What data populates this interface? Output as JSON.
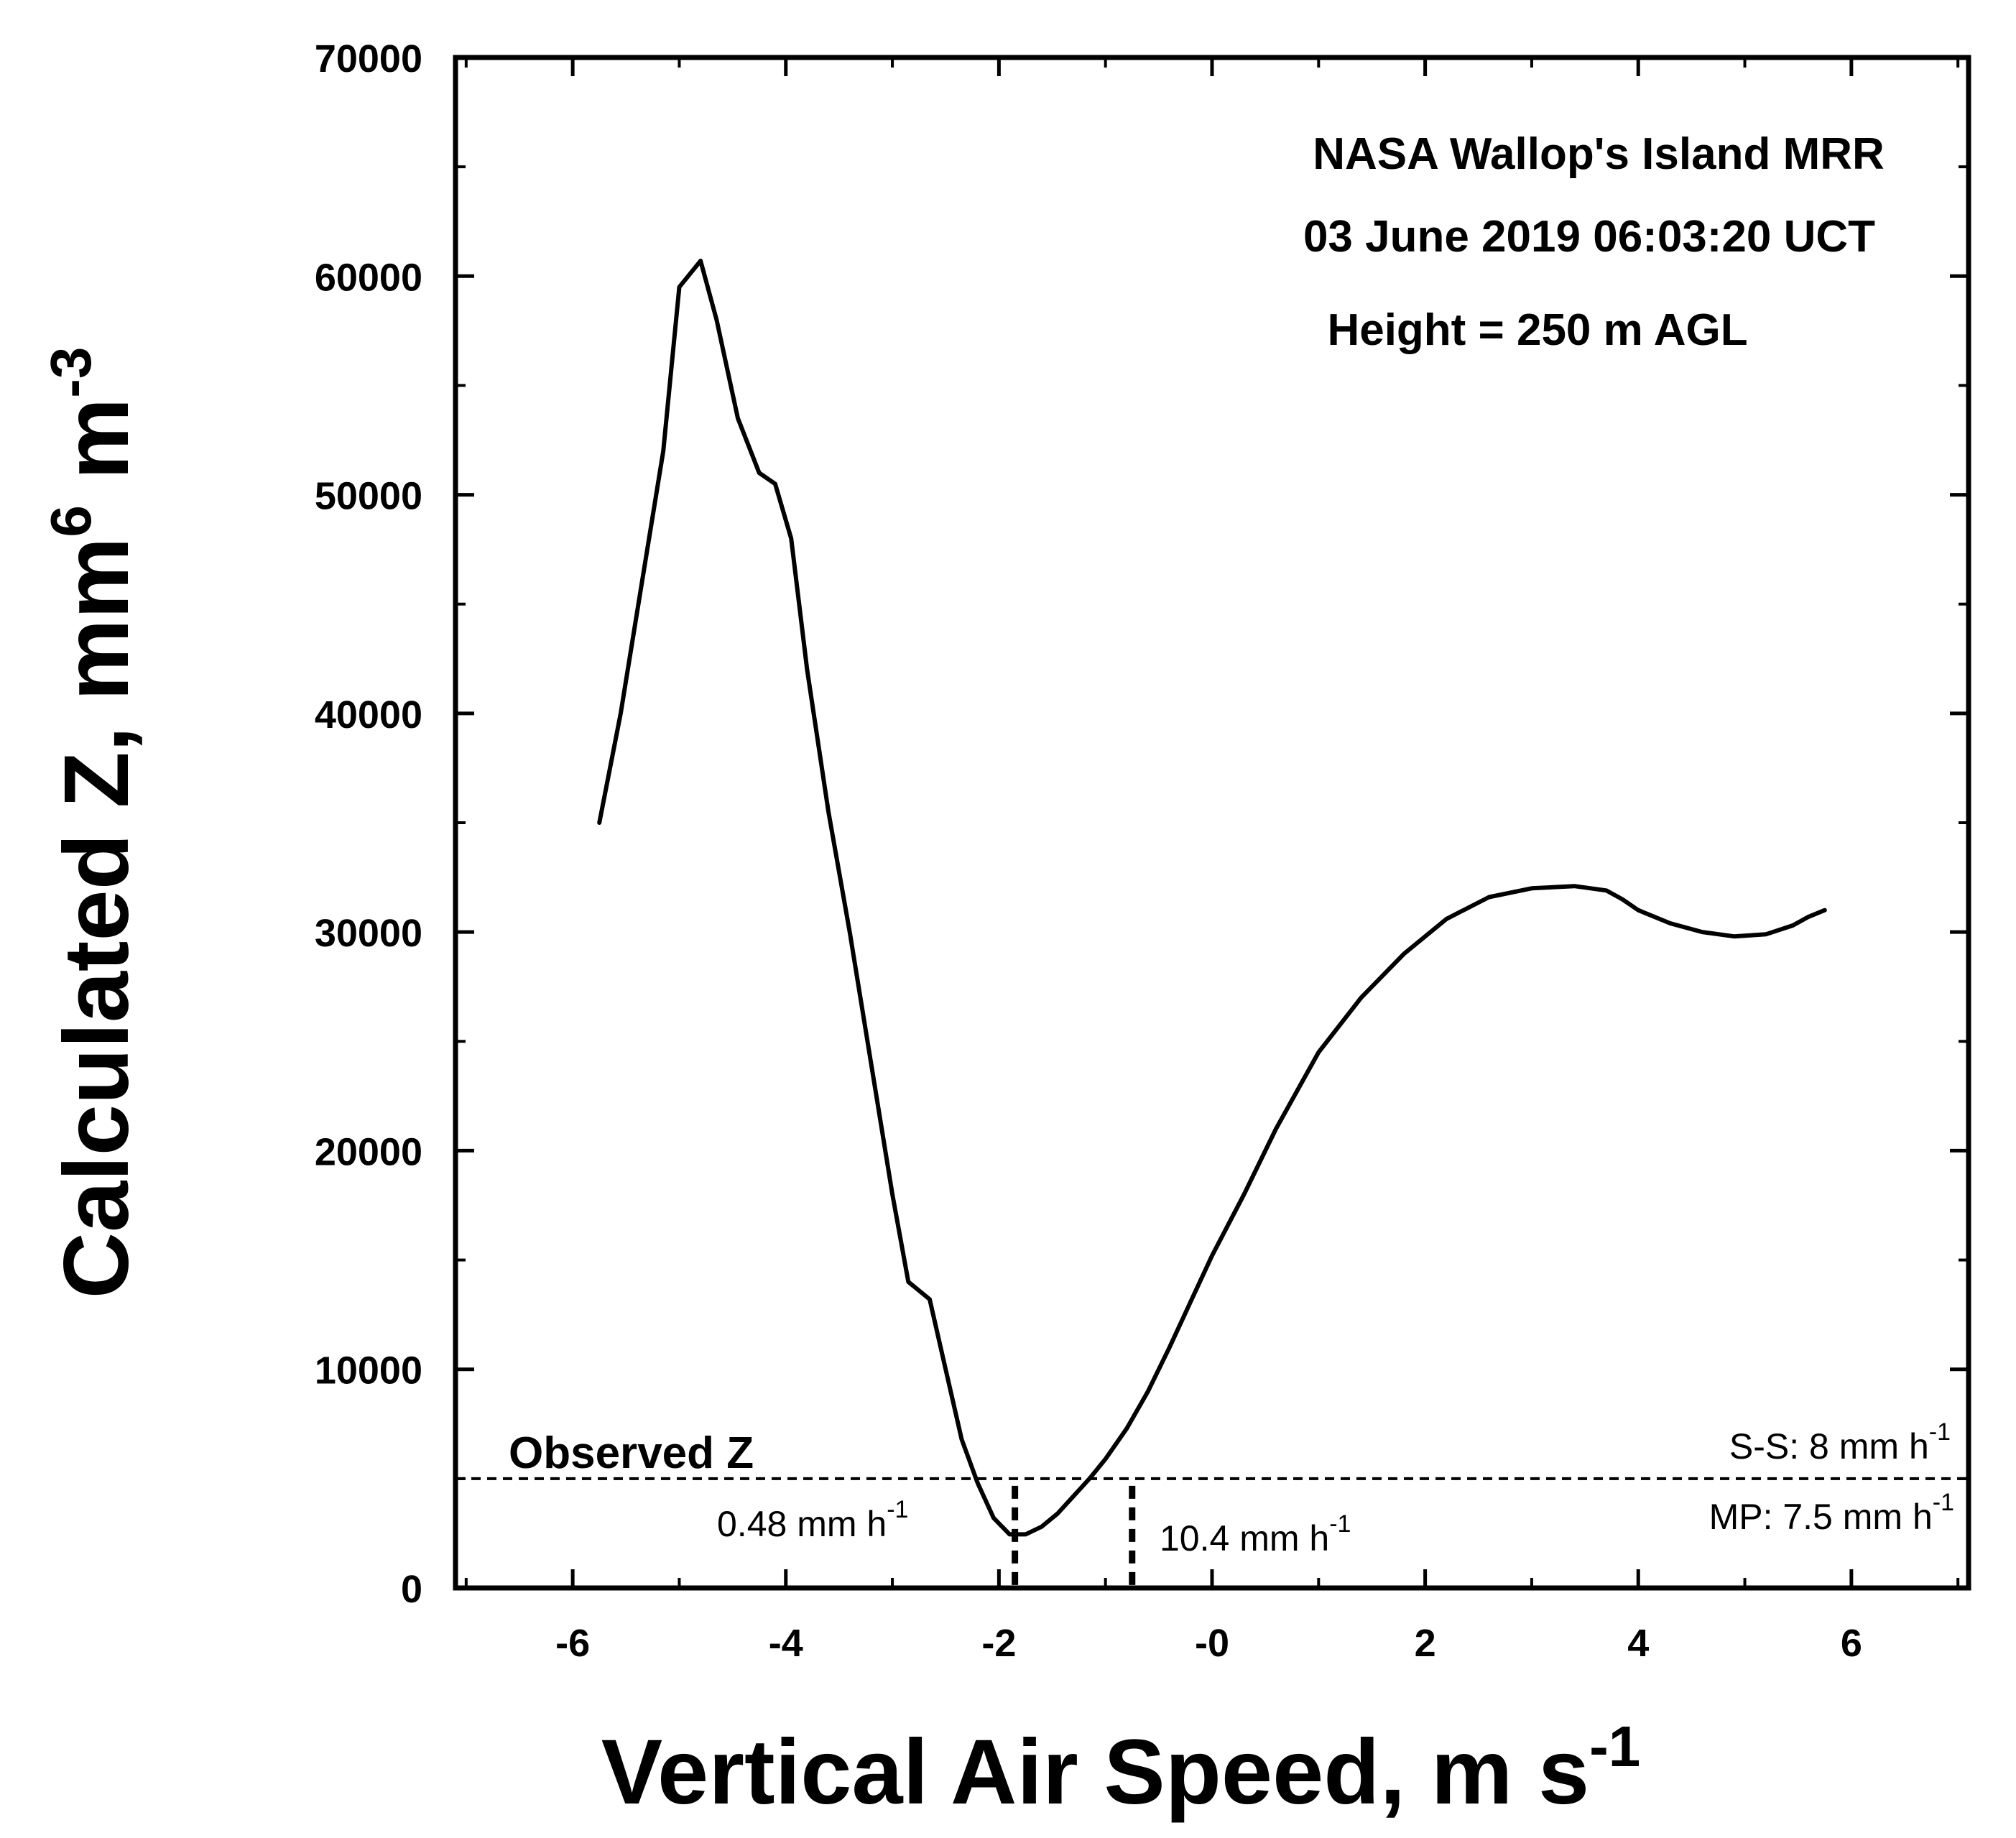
{
  "chart_data": {
    "type": "line",
    "title": "",
    "annotation_lines": [
      "NASA Wallop's Island MRR",
      "03 June 2019 06:03:20 UCT",
      "Height = 250 m AGL"
    ],
    "xlabel": "Vertical Air Speed, m s",
    "xlabel_sup": "-1",
    "ylabel": "Calculated Z, mm",
    "ylabel_sup1": "6",
    "ylabel_mid": " m",
    "ylabel_sup2": "-3",
    "xlim": [
      -7.1,
      7.1
    ],
    "ylim": [
      0,
      70000
    ],
    "xticks": [
      -6,
      -4,
      -2,
      0,
      2,
      4,
      6
    ],
    "xtick_labels": [
      "-6",
      "-4",
      "-2",
      "-0",
      "2",
      "4",
      "6"
    ],
    "xminor": [
      -7,
      -5,
      -3,
      -1,
      1,
      3,
      5,
      7
    ],
    "yticks": [
      0,
      10000,
      20000,
      30000,
      40000,
      50000,
      60000,
      70000
    ],
    "ytick_labels": [
      "0",
      "10000",
      "20000",
      "30000",
      "40000",
      "50000",
      "60000",
      "70000"
    ],
    "yminor": [
      5000,
      15000,
      25000,
      35000,
      45000,
      55000,
      65000
    ],
    "grid": false,
    "series": [
      {
        "name": "Calculated Z",
        "x": [
          -5.75,
          -5.55,
          -5.35,
          -5.15,
          -5.0,
          -4.8,
          -4.65,
          -4.45,
          -4.25,
          -4.1,
          -3.95,
          -3.8,
          -3.6,
          -3.4,
          -3.2,
          -3.0,
          -2.85,
          -2.65,
          -2.5,
          -2.35,
          -2.2,
          -2.05,
          -1.9,
          -1.75,
          -1.6,
          -1.45,
          -1.3,
          -1.15,
          -1.0,
          -0.8,
          -0.6,
          -0.4,
          -0.2,
          0.0,
          0.3,
          0.6,
          1.0,
          1.4,
          1.8,
          2.2,
          2.6,
          3.0,
          3.4,
          3.7,
          3.85,
          4.0,
          4.3,
          4.6,
          4.9,
          5.2,
          5.45,
          5.6,
          5.75
        ],
        "y": [
          35000,
          40000,
          46000,
          52000,
          59500,
          60700,
          58000,
          53500,
          51000,
          50500,
          48000,
          42000,
          35500,
          30000,
          24000,
          18000,
          14000,
          13200,
          10000,
          6800,
          4800,
          3200,
          2450,
          2450,
          2800,
          3400,
          4200,
          5000,
          5900,
          7300,
          9000,
          11000,
          13100,
          15200,
          18000,
          21000,
          24500,
          27000,
          29000,
          30600,
          31600,
          32000,
          32100,
          31900,
          31500,
          31000,
          30400,
          30000,
          29800,
          29900,
          30300,
          30700,
          31000
        ]
      }
    ],
    "observed_z": 5000,
    "observed_label": "Observed Z",
    "markers": [
      {
        "x": -1.85,
        "label": "0.48 mm h",
        "sup": "-1"
      },
      {
        "x": -0.75,
        "label": "10.4 mm h",
        "sup": "-1"
      }
    ],
    "ss_label": "S-S: 8 mm h",
    "ss_sup": "-1",
    "mp_label": "MP: 7.5 mm h",
    "mp_sup": "-1"
  }
}
